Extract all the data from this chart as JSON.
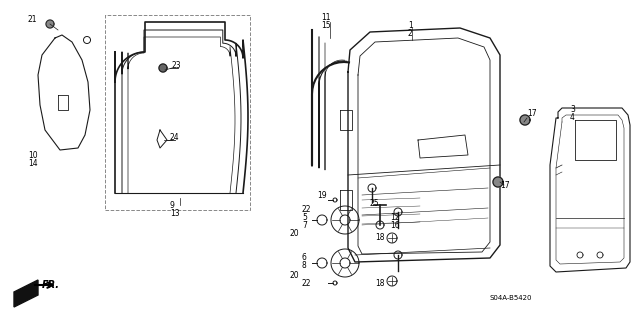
{
  "background_color": "#ffffff",
  "figure_width": 6.4,
  "figure_height": 3.19,
  "dpi": 100,
  "part_number_text": "S04A-B5420",
  "line_color": "#1a1a1a",
  "text_color": "#000000",
  "label_fontsize": 5.5
}
